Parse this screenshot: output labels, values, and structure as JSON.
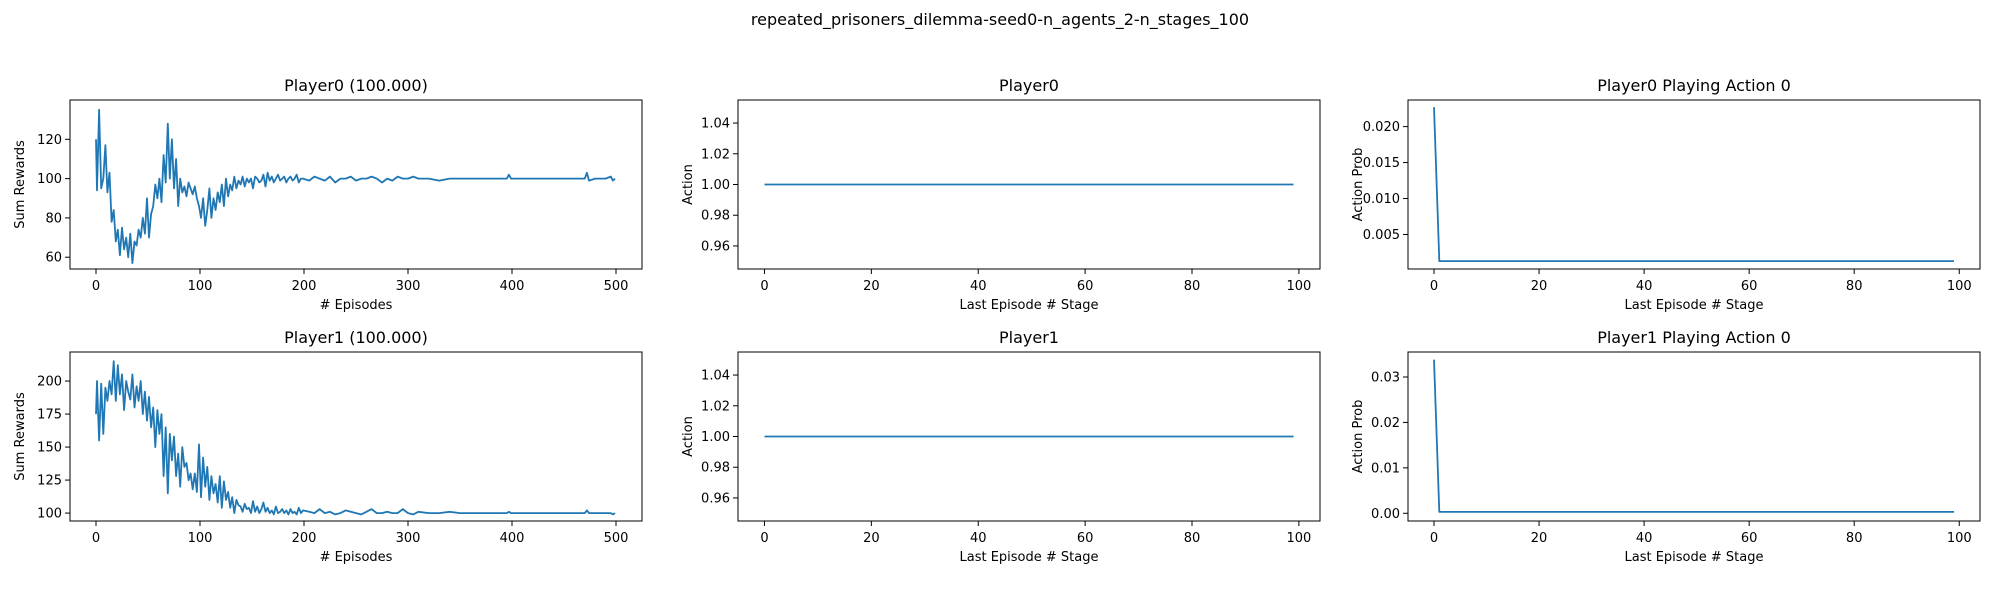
{
  "figure_title": "repeated_prisoners_dilemma-seed0-n_agents_2-n_stages_100",
  "line_color": "#1f77b4",
  "chart_data": [
    {
      "type": "line",
      "title": "Player0 (100.000)",
      "xlabel": "# Episodes",
      "ylabel": "Sum Rewards",
      "xlim": [
        -25,
        525
      ],
      "ylim": [
        54,
        140
      ],
      "xticks": [
        0,
        100,
        200,
        300,
        400,
        500
      ],
      "yticks": [
        60,
        80,
        100,
        120
      ],
      "yfmt": 0,
      "series": [
        {
          "x": [
            0,
            1,
            3,
            5,
            7,
            9,
            11,
            13,
            15,
            17,
            19,
            21,
            23,
            25,
            27,
            29,
            31,
            33,
            35,
            37,
            39,
            41,
            43,
            45,
            47,
            49,
            51,
            53,
            55,
            57,
            59,
            61,
            63,
            65,
            67,
            69,
            71,
            73,
            75,
            77,
            79,
            81,
            83,
            85,
            87,
            89,
            91,
            93,
            95,
            97,
            99,
            101,
            103,
            105,
            107,
            109,
            111,
            113,
            115,
            117,
            119,
            121,
            123,
            125,
            127,
            129,
            131,
            133,
            135,
            137,
            139,
            141,
            143,
            145,
            147,
            149,
            151,
            153,
            155,
            157,
            159,
            161,
            163,
            165,
            167,
            169,
            171,
            173,
            175,
            177,
            179,
            181,
            183,
            185,
            187,
            189,
            191,
            193,
            195,
            197,
            199,
            205,
            210,
            215,
            220,
            225,
            230,
            235,
            240,
            245,
            250,
            255,
            260,
            265,
            270,
            275,
            280,
            285,
            290,
            295,
            300,
            305,
            310,
            320,
            330,
            340,
            350,
            360,
            380,
            395,
            397,
            399,
            420,
            440,
            460,
            470,
            472,
            474,
            480,
            490,
            495,
            497,
            499
          ],
          "y": [
            120,
            94,
            135,
            95,
            100,
            117,
            93,
            103,
            78,
            84,
            68,
            74,
            61,
            75,
            64,
            70,
            60,
            72,
            57,
            68,
            66,
            74,
            70,
            80,
            72,
            90,
            70,
            82,
            86,
            97,
            90,
            100,
            88,
            112,
            98,
            128,
            100,
            120,
            95,
            110,
            86,
            100,
            93,
            96,
            91,
            98,
            95,
            92,
            96,
            90,
            86,
            80,
            90,
            76,
            84,
            95,
            80,
            90,
            84,
            93,
            88,
            97,
            86,
            100,
            91,
            97,
            94,
            101,
            95,
            99,
            97,
            101,
            96,
            100,
            98,
            100,
            95,
            101,
            100,
            98,
            99,
            102,
            96,
            103,
            99,
            101,
            98,
            100,
            102,
            99,
            100,
            101,
            98,
            100,
            101,
            99,
            100,
            102,
            98,
            100,
            100,
            99,
            101,
            100,
            99,
            101,
            98,
            100,
            100,
            101,
            99,
            100,
            100,
            101,
            100,
            98,
            100,
            99,
            101,
            100,
            100,
            101,
            100,
            100,
            99,
            100,
            100,
            100,
            100,
            100,
            102,
            100,
            100,
            100,
            100,
            100,
            103,
            99,
            100,
            100,
            101,
            99,
            100
          ]
        }
      ]
    },
    {
      "type": "line",
      "title": "Player0",
      "xlabel": "Last Episode # Stage",
      "ylabel": "Action",
      "xlim": [
        -4.95,
        103.95
      ],
      "ylim": [
        0.945,
        1.055
      ],
      "xticks": [
        0,
        20,
        40,
        60,
        80,
        100
      ],
      "yticks": [
        0.96,
        0.98,
        1.0,
        1.02,
        1.04
      ],
      "yfmt": 2,
      "series": [
        {
          "x": [
            0,
            99
          ],
          "y": [
            1.0,
            1.0
          ]
        }
      ]
    },
    {
      "type": "line",
      "title": "Player0 Playing Action 0",
      "xlabel": "Last Episode # Stage",
      "ylabel": "Action Prob",
      "xlim": [
        -4.95,
        103.95
      ],
      "ylim": [
        0.0002,
        0.0237
      ],
      "xticks": [
        0,
        20,
        40,
        60,
        80,
        100
      ],
      "yticks": [
        0.005,
        0.01,
        0.015,
        0.02
      ],
      "yfmt": 3,
      "series": [
        {
          "x": [
            0,
            1,
            99
          ],
          "y": [
            0.0227,
            0.0013,
            0.0013
          ]
        }
      ]
    },
    {
      "type": "line",
      "title": "Player1 (100.000)",
      "xlabel": "# Episodes",
      "ylabel": "Sum Rewards",
      "xlim": [
        -25,
        525
      ],
      "ylim": [
        94,
        222
      ],
      "xticks": [
        0,
        100,
        200,
        300,
        400,
        500
      ],
      "yticks": [
        100,
        125,
        150,
        175,
        200
      ],
      "yfmt": 0,
      "series": [
        {
          "x": [
            0,
            1,
            3,
            5,
            7,
            9,
            11,
            13,
            15,
            17,
            19,
            21,
            23,
            25,
            27,
            29,
            31,
            33,
            35,
            37,
            39,
            41,
            43,
            45,
            47,
            49,
            51,
            53,
            55,
            57,
            59,
            61,
            63,
            65,
            67,
            69,
            71,
            73,
            75,
            77,
            79,
            81,
            83,
            85,
            87,
            89,
            91,
            93,
            95,
            97,
            99,
            101,
            103,
            105,
            107,
            109,
            111,
            113,
            115,
            117,
            119,
            121,
            123,
            125,
            127,
            129,
            131,
            133,
            135,
            137,
            139,
            141,
            143,
            145,
            147,
            149,
            151,
            153,
            155,
            157,
            159,
            161,
            163,
            165,
            167,
            169,
            171,
            173,
            175,
            177,
            179,
            181,
            183,
            185,
            187,
            189,
            191,
            193,
            195,
            197,
            199,
            205,
            210,
            215,
            220,
            225,
            230,
            235,
            240,
            245,
            250,
            255,
            260,
            265,
            270,
            275,
            280,
            285,
            290,
            295,
            300,
            305,
            310,
            320,
            330,
            340,
            350,
            360,
            380,
            395,
            397,
            399,
            420,
            440,
            460,
            470,
            472,
            474,
            480,
            490,
            495,
            497,
            499
          ],
          "y": [
            175,
            200,
            155,
            198,
            160,
            195,
            185,
            200,
            190,
            215,
            185,
            212,
            190,
            205,
            178,
            200,
            192,
            186,
            205,
            180,
            196,
            185,
            200,
            175,
            192,
            170,
            188,
            165,
            180,
            150,
            178,
            160,
            175,
            128,
            165,
            115,
            160,
            140,
            158,
            128,
            145,
            120,
            150,
            135,
            138,
            125,
            130,
            118,
            130,
            116,
            152,
            112,
            142,
            120,
            135,
            110,
            128,
            115,
            122,
            108,
            128,
            104,
            124,
            110,
            116,
            104,
            112,
            100,
            110,
            106,
            105,
            101,
            107,
            103,
            104,
            100,
            109,
            101,
            105,
            100,
            103,
            108,
            101,
            104,
            100,
            102,
            99,
            105,
            100,
            101,
            103,
            100,
            102,
            99,
            103,
            100,
            101,
            99,
            104,
            100,
            102,
            101,
            100,
            103,
            100,
            101,
            99,
            100,
            102,
            101,
            100,
            99,
            101,
            103,
            100,
            100,
            101,
            100,
            100,
            103,
            100,
            99,
            101,
            100,
            100,
            101,
            100,
            100,
            100,
            100,
            101,
            100,
            100,
            100,
            100,
            100,
            102,
            100,
            100,
            100,
            100,
            99,
            100
          ]
        }
      ]
    },
    {
      "type": "line",
      "title": "Player1",
      "xlabel": "Last Episode # Stage",
      "ylabel": "Action",
      "xlim": [
        -4.95,
        103.95
      ],
      "ylim": [
        0.945,
        1.055
      ],
      "xticks": [
        0,
        20,
        40,
        60,
        80,
        100
      ],
      "yticks": [
        0.96,
        0.98,
        1.0,
        1.02,
        1.04
      ],
      "yfmt": 2,
      "series": [
        {
          "x": [
            0,
            99
          ],
          "y": [
            1.0,
            1.0
          ]
        }
      ]
    },
    {
      "type": "line",
      "title": "Player1 Playing Action 0",
      "xlabel": "Last Episode # Stage",
      "ylabel": "Action Prob",
      "xlim": [
        -4.95,
        103.95
      ],
      "ylim": [
        -0.0017,
        0.0355
      ],
      "xticks": [
        0,
        20,
        40,
        60,
        80,
        100
      ],
      "yticks": [
        0.0,
        0.01,
        0.02,
        0.03
      ],
      "yfmt": 2,
      "series": [
        {
          "x": [
            0,
            1,
            99
          ],
          "y": [
            0.0338,
            0.0003,
            0.0003
          ]
        }
      ]
    }
  ]
}
